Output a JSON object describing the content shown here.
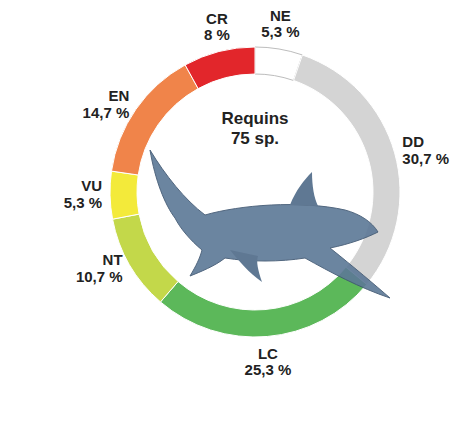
{
  "chart_data": {
    "type": "donut",
    "title": "Requins",
    "subtitle": "75 sp.",
    "categories": [
      "NE",
      "DD",
      "LC",
      "NT",
      "VU",
      "EN",
      "CR"
    ],
    "values": [
      5.3,
      30.7,
      25.3,
      10.7,
      5.3,
      14.7,
      8
    ],
    "value_labels": [
      "5,3 %",
      "30,7 %",
      "25,3 %",
      "10,7 %",
      "5,3 %",
      "14,7 %",
      "8 %"
    ],
    "colors": [
      "#ffffff",
      "#d4d4d4",
      "#5cb85a",
      "#c3d84a",
      "#f3ea3a",
      "#f0844a",
      "#e2262b"
    ],
    "data_labels": true
  }
}
